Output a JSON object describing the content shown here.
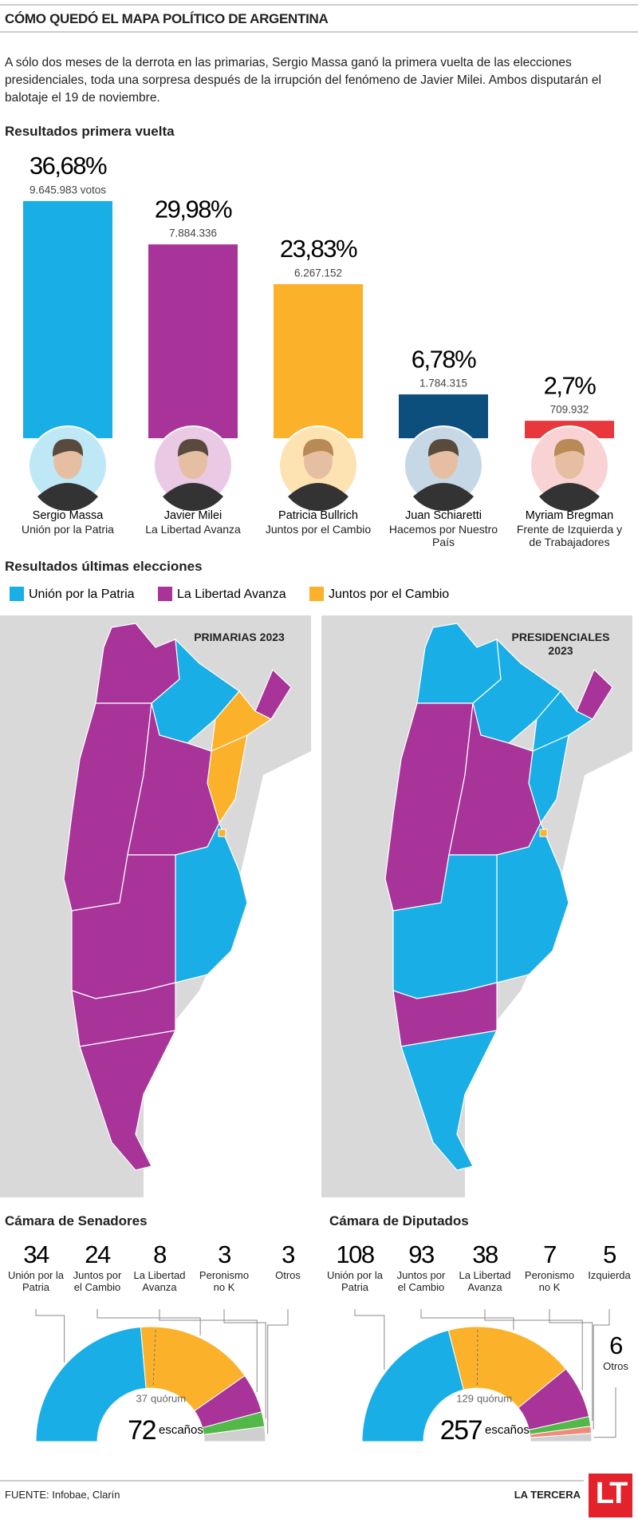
{
  "header": {
    "title": "CÓMO QUEDÓ EL MAPA POLÍTICO DE ARGENTINA",
    "intro": "A sólo dos meses de la derrota en las primarias, Sergio Massa ganó la primera vuelta de las elecciones presidenciales, toda una sorpresa después de la irrupción del fenómeno de Javier Milei. Ambos disputarán el balotaje el 19 de noviembre."
  },
  "chart_data": [
    {
      "type": "bar",
      "title": "Resultados primera vuelta",
      "categories": [
        "Sergio Massa",
        "Javier Milei",
        "Patricia Bullrich",
        "Juan Schiaretti",
        "Myriam Bregman"
      ],
      "parties": [
        "Unión por la Patria",
        "La Libertad Avanza",
        "Juntos por el Cambio",
        "Hacemos por Nuestro País",
        "Frente de Izquierda y de Trabajadores"
      ],
      "values": [
        36.68,
        29.98,
        23.83,
        6.78,
        2.7
      ],
      "value_labels": [
        "36,68%",
        "29,98%",
        "23,83%",
        "6,78%",
        "2,7%"
      ],
      "votes": [
        9645983,
        7884336,
        6267152,
        1784315,
        709932
      ],
      "vote_labels": [
        "9.645.983 votos",
        "7.884.336",
        "6.267.152",
        "1.784.315",
        "709.932"
      ],
      "colors": [
        "#1aaee6",
        "#a8349a",
        "#fbb12a",
        "#0c4f7c",
        "#e8383d"
      ],
      "ylim": [
        0,
        40
      ]
    },
    {
      "type": "parliament",
      "title": "Cámara de Senadores",
      "categories": [
        "Unión por la Patria",
        "Juntos por el Cambio",
        "La Libertad Avanza",
        "Peronismo no K",
        "Otros"
      ],
      "values": [
        34,
        24,
        8,
        3,
        3
      ],
      "colors": [
        "#1aaee6",
        "#fbb12a",
        "#a8349a",
        "#52b848",
        "#cfcfcf"
      ],
      "total": 72,
      "total_label": "escaños",
      "quorum": 37,
      "quorum_label": "quórum"
    },
    {
      "type": "parliament",
      "title": "Cámara de Diputados",
      "categories": [
        "Unión por la Patria",
        "Juntos por el Cambio",
        "La Libertad Avanza",
        "Peronismo no K",
        "Izquierda",
        "Otros"
      ],
      "values": [
        108,
        93,
        38,
        7,
        5,
        6
      ],
      "colors": [
        "#1aaee6",
        "#fbb12a",
        "#a8349a",
        "#52b848",
        "#f08a7a",
        "#cfcfcf"
      ],
      "total": 257,
      "total_label": "escaños",
      "quorum": 129,
      "quorum_label": "quórum"
    }
  ],
  "maps": {
    "title": "Resultados últimas elecciones",
    "legend": [
      {
        "name": "Unión por la Patria",
        "color": "#1aaee6"
      },
      {
        "name": "La Libertad Avanza",
        "color": "#a8349a"
      },
      {
        "name": "Juntos por el Cambio",
        "color": "#fbb12a"
      }
    ],
    "panels": [
      "PRIMARIAS 2023",
      "PRESIDENCIALES 2023"
    ]
  },
  "footer": {
    "source": "FUENTE: Infobae, Clarín",
    "brand": "LA TERCERA",
    "logo": "LT"
  }
}
